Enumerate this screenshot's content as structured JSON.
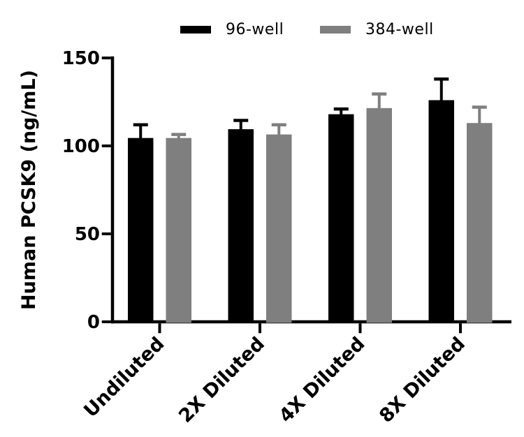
{
  "figure": {
    "background": "#ffffff",
    "text_color": "#000000"
  },
  "legend": {
    "position": "top",
    "items": [
      {
        "label": "96-well",
        "color": "#000000"
      },
      {
        "label": "384-well",
        "color": "#7f7f7f"
      }
    ]
  },
  "chart_data": {
    "type": "bar",
    "title": "",
    "xlabel": "",
    "ylabel": "Human PCSK9 (ng/mL)",
    "ylim": [
      0,
      150
    ],
    "yticks": [
      0,
      50,
      100,
      150
    ],
    "grid": false,
    "legend_position": "top",
    "error_bars": "upward only (SD)",
    "categories": [
      "Undiluted",
      "2X Diluted",
      "4X Diluted",
      "8X Diluted"
    ],
    "series": [
      {
        "name": "96-well",
        "color": "#000000",
        "values": [
          104.5,
          109.5,
          118,
          126
        ],
        "errors": [
          7.5,
          5,
          3,
          12
        ]
      },
      {
        "name": "384-well",
        "color": "#7f7f7f",
        "values": [
          104.5,
          106.5,
          121.5,
          113
        ],
        "errors": [
          2,
          5.5,
          8,
          9
        ]
      }
    ]
  }
}
